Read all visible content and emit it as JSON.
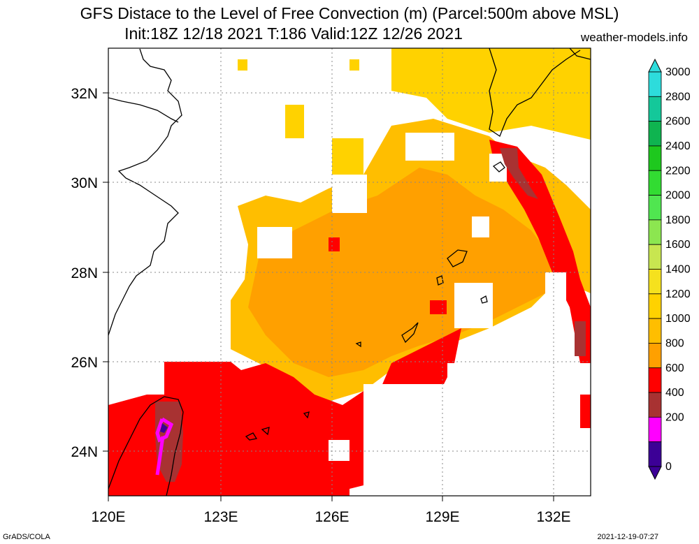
{
  "title_line1": "GFS Distace to the Level of Free Convection (m) (Parcel:500m above MSL)",
  "title_line2": "Init:18Z 12/18 2021 T:186 Valid:12Z 12/26 2021",
  "site": "weather-models.info",
  "footer_left": "GrADS/COLA",
  "footer_right": "2021-12-19-07:27",
  "map": {
    "lon_ticks": [
      "120E",
      "123E",
      "126E",
      "129E",
      "132E"
    ],
    "lat_ticks": [
      "32N",
      "30N",
      "28N",
      "26N",
      "24N"
    ],
    "lon_range": [
      120,
      133
    ],
    "lat_range": [
      23,
      33
    ]
  },
  "colorbar": {
    "labels": [
      "3000",
      "2800",
      "2600",
      "2400",
      "2200",
      "2000",
      "1800",
      "1600",
      "1400",
      "1200",
      "1000",
      "800",
      "600",
      "400",
      "200",
      "0"
    ],
    "colors": [
      "#2ddcdc",
      "#14c89a",
      "#0fb450",
      "#1ec81e",
      "#32dc32",
      "#50e650",
      "#8ce650",
      "#c8e650",
      "#f5e11e",
      "#ffd200",
      "#ffbe00",
      "#ffa000",
      "#ff0000",
      "#a83232",
      "#ff00ff",
      "#3c0096"
    ]
  },
  "colors": {
    "light_yellow": "#ffd200",
    "yellow_orange": "#ffbe00",
    "orange": "#ffa000",
    "red": "#ff0000",
    "brown": "#a83232",
    "magenta": "#ff00ff",
    "purple": "#3c0096"
  }
}
